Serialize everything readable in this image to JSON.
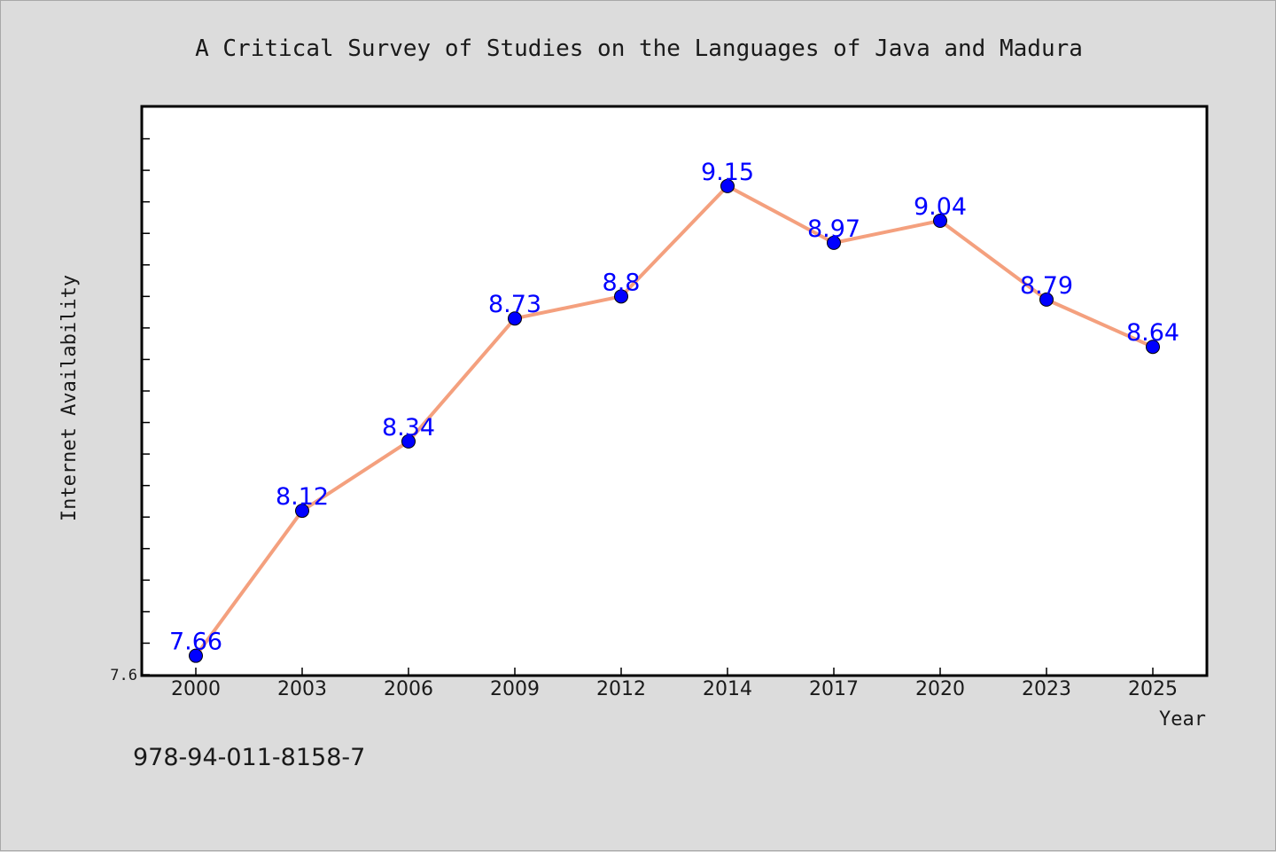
{
  "chart_data": {
    "type": "line",
    "title": "A Critical Survey of Studies on the Languages of Java and Madura",
    "xlabel": "Year",
    "ylabel": "Internet Availability",
    "categories": [
      "2000",
      "2003",
      "2006",
      "2009",
      "2012",
      "2014",
      "2017",
      "2020",
      "2023",
      "2025"
    ],
    "series": [
      {
        "values": [
          7.66,
          8.12,
          8.34,
          8.73,
          8.8,
          9.15,
          8.97,
          9.04,
          8.79,
          8.64
        ],
        "labels": [
          "7.66",
          "8.12",
          "8.34",
          "8.73",
          "8.8",
          "9.15",
          "8.97",
          "9.04",
          "8.79",
          "8.64"
        ]
      }
    ],
    "y_tick_labels": [
      "7.6"
    ],
    "ylim": [
      7.6,
      9.4
    ],
    "grid": false,
    "legend": "none"
  },
  "footer_code": "978-94-011-8158-7",
  "colors": {
    "background": "#dcdcdc",
    "plot_background": "#ffffff",
    "line": "#f4a07e",
    "marker": "#0000ff",
    "data_label": "#0000ff",
    "text": "#1a1a1a"
  }
}
